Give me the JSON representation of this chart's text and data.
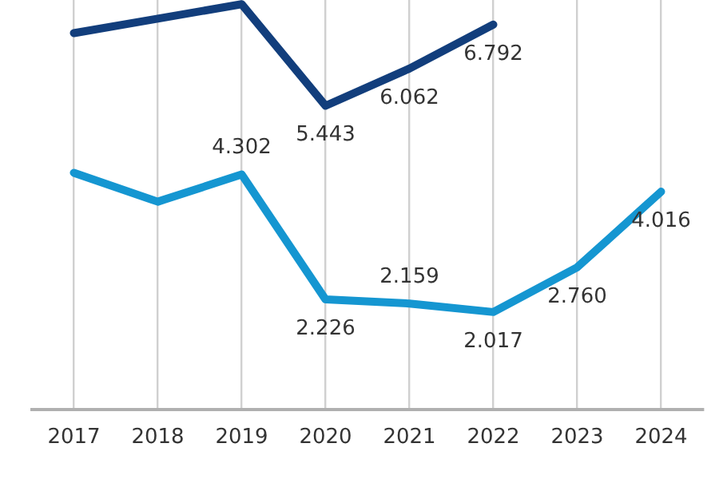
{
  "chart_data": {
    "type": "line",
    "categories": [
      "2017",
      "2018",
      "2019",
      "2020",
      "2021",
      "2022",
      "2023",
      "2024"
    ],
    "series": [
      {
        "color": "#123e7c",
        "values": [
          6.65,
          6.89,
          7.13,
          5.443,
          6.062,
          6.792,
          null,
          null
        ],
        "value_labels": [
          null,
          null,
          null,
          "5.443",
          "6.062",
          "6.792",
          null,
          null
        ]
      },
      {
        "color": "#1596d1",
        "values": [
          4.33,
          3.85,
          4.302,
          2.226,
          2.159,
          2.017,
          2.76,
          4.016
        ],
        "value_labels": [
          null,
          null,
          "4.302",
          "2.226",
          "2.159",
          "2.017",
          "2.760",
          "4.016"
        ]
      }
    ],
    "ylim": [
      0.4,
      7.2
    ],
    "grid": "x",
    "legend": false,
    "tick_labels": "x",
    "marker": "none",
    "line_style": "solid"
  }
}
